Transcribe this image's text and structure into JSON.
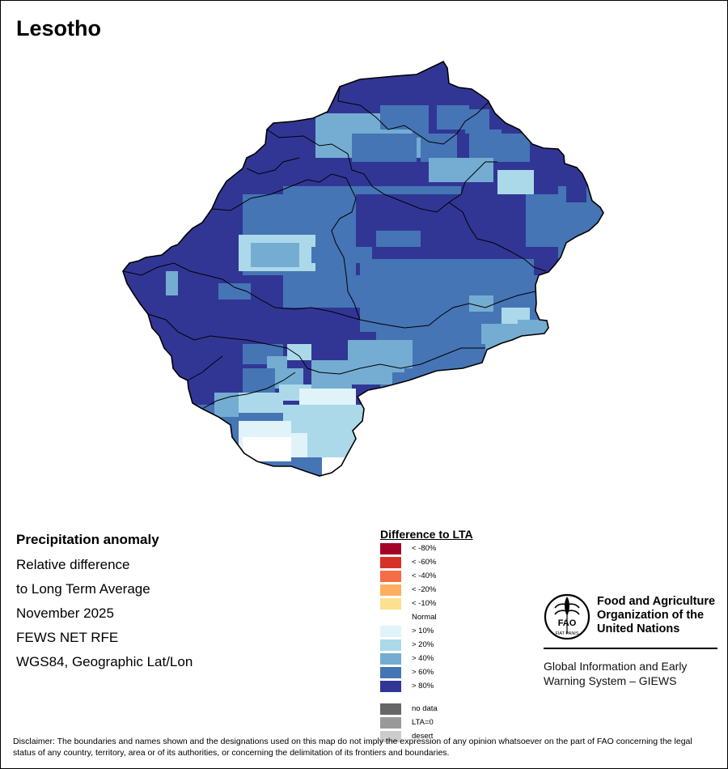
{
  "title": "Lesotho",
  "info": {
    "heading": "Precipitation anomaly",
    "line1": "Relative difference",
    "line2": "to Long Term Average",
    "line3": "November 2025",
    "line4": "FEWS NET RFE",
    "line5": "WGS84, Geographic Lat/Lon"
  },
  "legend": {
    "title": "Difference to LTA",
    "items": [
      {
        "label": "< -80%",
        "color": "#a50026"
      },
      {
        "label": "< -60%",
        "color": "#d73027"
      },
      {
        "label": "< -40%",
        "color": "#f46d43"
      },
      {
        "label": "< -20%",
        "color": "#fdae61"
      },
      {
        "label": "< -10%",
        "color": "#fee090"
      },
      {
        "label": "Normal",
        "color": "#ffffff"
      },
      {
        "label": "> 10%",
        "color": "#e0f3f8"
      },
      {
        "label": "> 20%",
        "color": "#abd9e9"
      },
      {
        "label": "> 40%",
        "color": "#74add1"
      },
      {
        "label": "> 60%",
        "color": "#4575b4"
      },
      {
        "label": "> 80%",
        "color": "#313695"
      }
    ],
    "extra": [
      {
        "label": "no data",
        "color": "#666666"
      },
      {
        "label": "LTA=0",
        "color": "#999999"
      },
      {
        "label": "desert",
        "color": "#cccccc"
      }
    ]
  },
  "organization": {
    "line1": "Food and Agriculture",
    "line2": "Organization of the",
    "line3": "United Nations",
    "logo_letters": "FAO",
    "logo_motto": "FIAT PANIS"
  },
  "giews": {
    "line1": "Global Information and Early",
    "line2": "Warning System – GIEWS"
  },
  "disclaimer": "Disclaimer: The boundaries and names shown and the designations used on this map do not imply the expression of any opinion whatsoever on the part of FAO concerning the legal status of any country, territory, area or of its authorities, or concerning the delimitation of its frontiers and boundaries."
}
